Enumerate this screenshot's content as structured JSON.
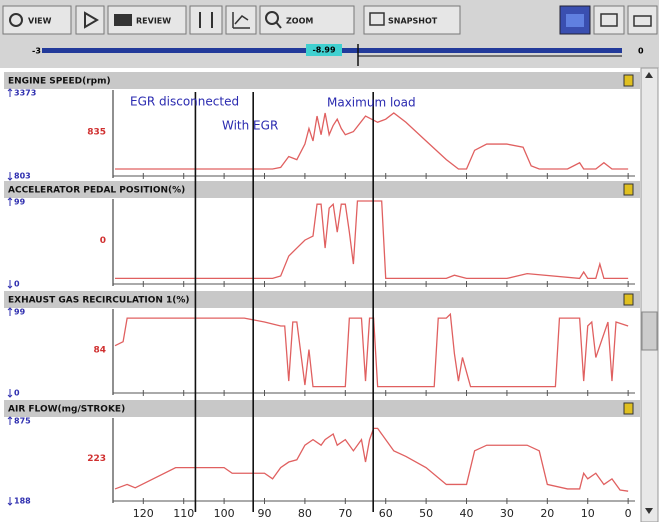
{
  "toolbar": {
    "view": "VIEW",
    "review": "REVIEW",
    "zoom": "ZOOM",
    "snapshot": "SNAPSHOT"
  },
  "slider": {
    "start": "-3",
    "current": "-8.99",
    "end": "0"
  },
  "markers": [
    {
      "label": "EGR disconnected",
      "x": 107.1
    },
    {
      "label": "With EGR",
      "x": 92.8
    },
    {
      "label": "Maximum load",
      "x": 63.1
    }
  ],
  "chart_data": [
    {
      "type": "line",
      "title": "ENGINE SPEED(rpm)",
      "current_value": 835,
      "color": "#e06060",
      "ylim": [
        803,
        3373
      ],
      "yticks": [
        803,
        3373
      ],
      "xlim": [
        127.5,
        -1.7
      ],
      "x": [
        127,
        100,
        88,
        86,
        84,
        82,
        80,
        79,
        78,
        77,
        76,
        75,
        74,
        73,
        72,
        71,
        70,
        68,
        65,
        62,
        60,
        58,
        55,
        50,
        45,
        42,
        40,
        38,
        35,
        30,
        26,
        24,
        22,
        20,
        15,
        12,
        11,
        10,
        8,
        6,
        4,
        2,
        0
      ],
      "values": [
        900,
        900,
        900,
        950,
        1300,
        1200,
        1700,
        2200,
        1800,
        2600,
        2000,
        2700,
        2000,
        2300,
        2500,
        2200,
        2000,
        2100,
        2600,
        2400,
        2500,
        2700,
        2400,
        1800,
        1200,
        900,
        900,
        1500,
        1700,
        1700,
        1600,
        1000,
        900,
        900,
        900,
        1100,
        900,
        900,
        900,
        1100,
        900,
        900,
        900
      ]
    },
    {
      "type": "line",
      "title": "ACCELERATOR PEDAL POSITION(%)",
      "current_value": 0,
      "color": "#e06060",
      "ylim": [
        0,
        99
      ],
      "yticks": [
        0,
        99
      ],
      "xlim": [
        127.5,
        -1.7
      ],
      "x": [
        127,
        88,
        86,
        84,
        82,
        80,
        78,
        77,
        76,
        75,
        74,
        73,
        72,
        71,
        70,
        69,
        68,
        67,
        62,
        61,
        60,
        45,
        43,
        40,
        30,
        25,
        12,
        11,
        10,
        8,
        7,
        6,
        0
      ],
      "values": [
        2,
        2,
        5,
        30,
        40,
        50,
        55,
        95,
        95,
        40,
        90,
        95,
        60,
        95,
        95,
        60,
        20,
        99,
        99,
        99,
        2,
        2,
        6,
        2,
        2,
        8,
        2,
        10,
        2,
        2,
        20,
        2,
        2
      ]
    },
    {
      "type": "line",
      "title": "EXHAUST GAS RECIRCULATION 1(%)",
      "current_value": 84,
      "color": "#e06060",
      "ylim": [
        0,
        99
      ],
      "yticks": [
        0,
        99
      ],
      "xlim": [
        127.5,
        -1.7
      ],
      "x": [
        127,
        125,
        124,
        95,
        90,
        86,
        85,
        84,
        83,
        82,
        80,
        79,
        78,
        77,
        76,
        75,
        70,
        69,
        68,
        66,
        65,
        64,
        63,
        62,
        60,
        50,
        48,
        47,
        45,
        44,
        43,
        42,
        41,
        39,
        20,
        18,
        17,
        12,
        11,
        10,
        9,
        8,
        5,
        4,
        3,
        0
      ],
      "values": [
        55,
        60,
        90,
        90,
        85,
        80,
        80,
        10,
        85,
        85,
        5,
        50,
        3,
        3,
        3,
        3,
        3,
        90,
        90,
        90,
        10,
        90,
        90,
        3,
        3,
        3,
        3,
        90,
        90,
        95,
        45,
        10,
        40,
        3,
        3,
        3,
        90,
        90,
        10,
        80,
        85,
        40,
        85,
        10,
        85,
        80
      ]
    },
    {
      "type": "line",
      "title": "AIR FLOW(mg/STROKE)",
      "current_value": 223,
      "color": "#e06060",
      "ylim": [
        188,
        875
      ],
      "yticks": [
        188,
        875
      ],
      "xlim": [
        127.5,
        -1.7
      ],
      "xticks": [
        120,
        110,
        100,
        90,
        80,
        70,
        60,
        50,
        40,
        30,
        20,
        10,
        0
      ],
      "x": [
        127,
        124,
        122,
        112,
        100,
        98,
        90,
        88,
        86,
        84,
        82,
        80,
        78,
        76,
        75,
        73,
        72,
        70,
        68,
        66,
        65,
        64,
        63,
        62,
        60,
        58,
        55,
        50,
        45,
        40,
        38,
        35,
        25,
        22,
        20,
        15,
        12,
        11,
        10,
        8,
        6,
        4,
        2,
        0
      ],
      "values": [
        260,
        300,
        270,
        450,
        450,
        400,
        400,
        350,
        450,
        500,
        520,
        650,
        700,
        650,
        700,
        750,
        650,
        700,
        600,
        700,
        500,
        700,
        800,
        800,
        700,
        600,
        550,
        450,
        300,
        300,
        600,
        650,
        650,
        600,
        300,
        260,
        260,
        400,
        350,
        400,
        300,
        350,
        250,
        240
      ]
    }
  ]
}
